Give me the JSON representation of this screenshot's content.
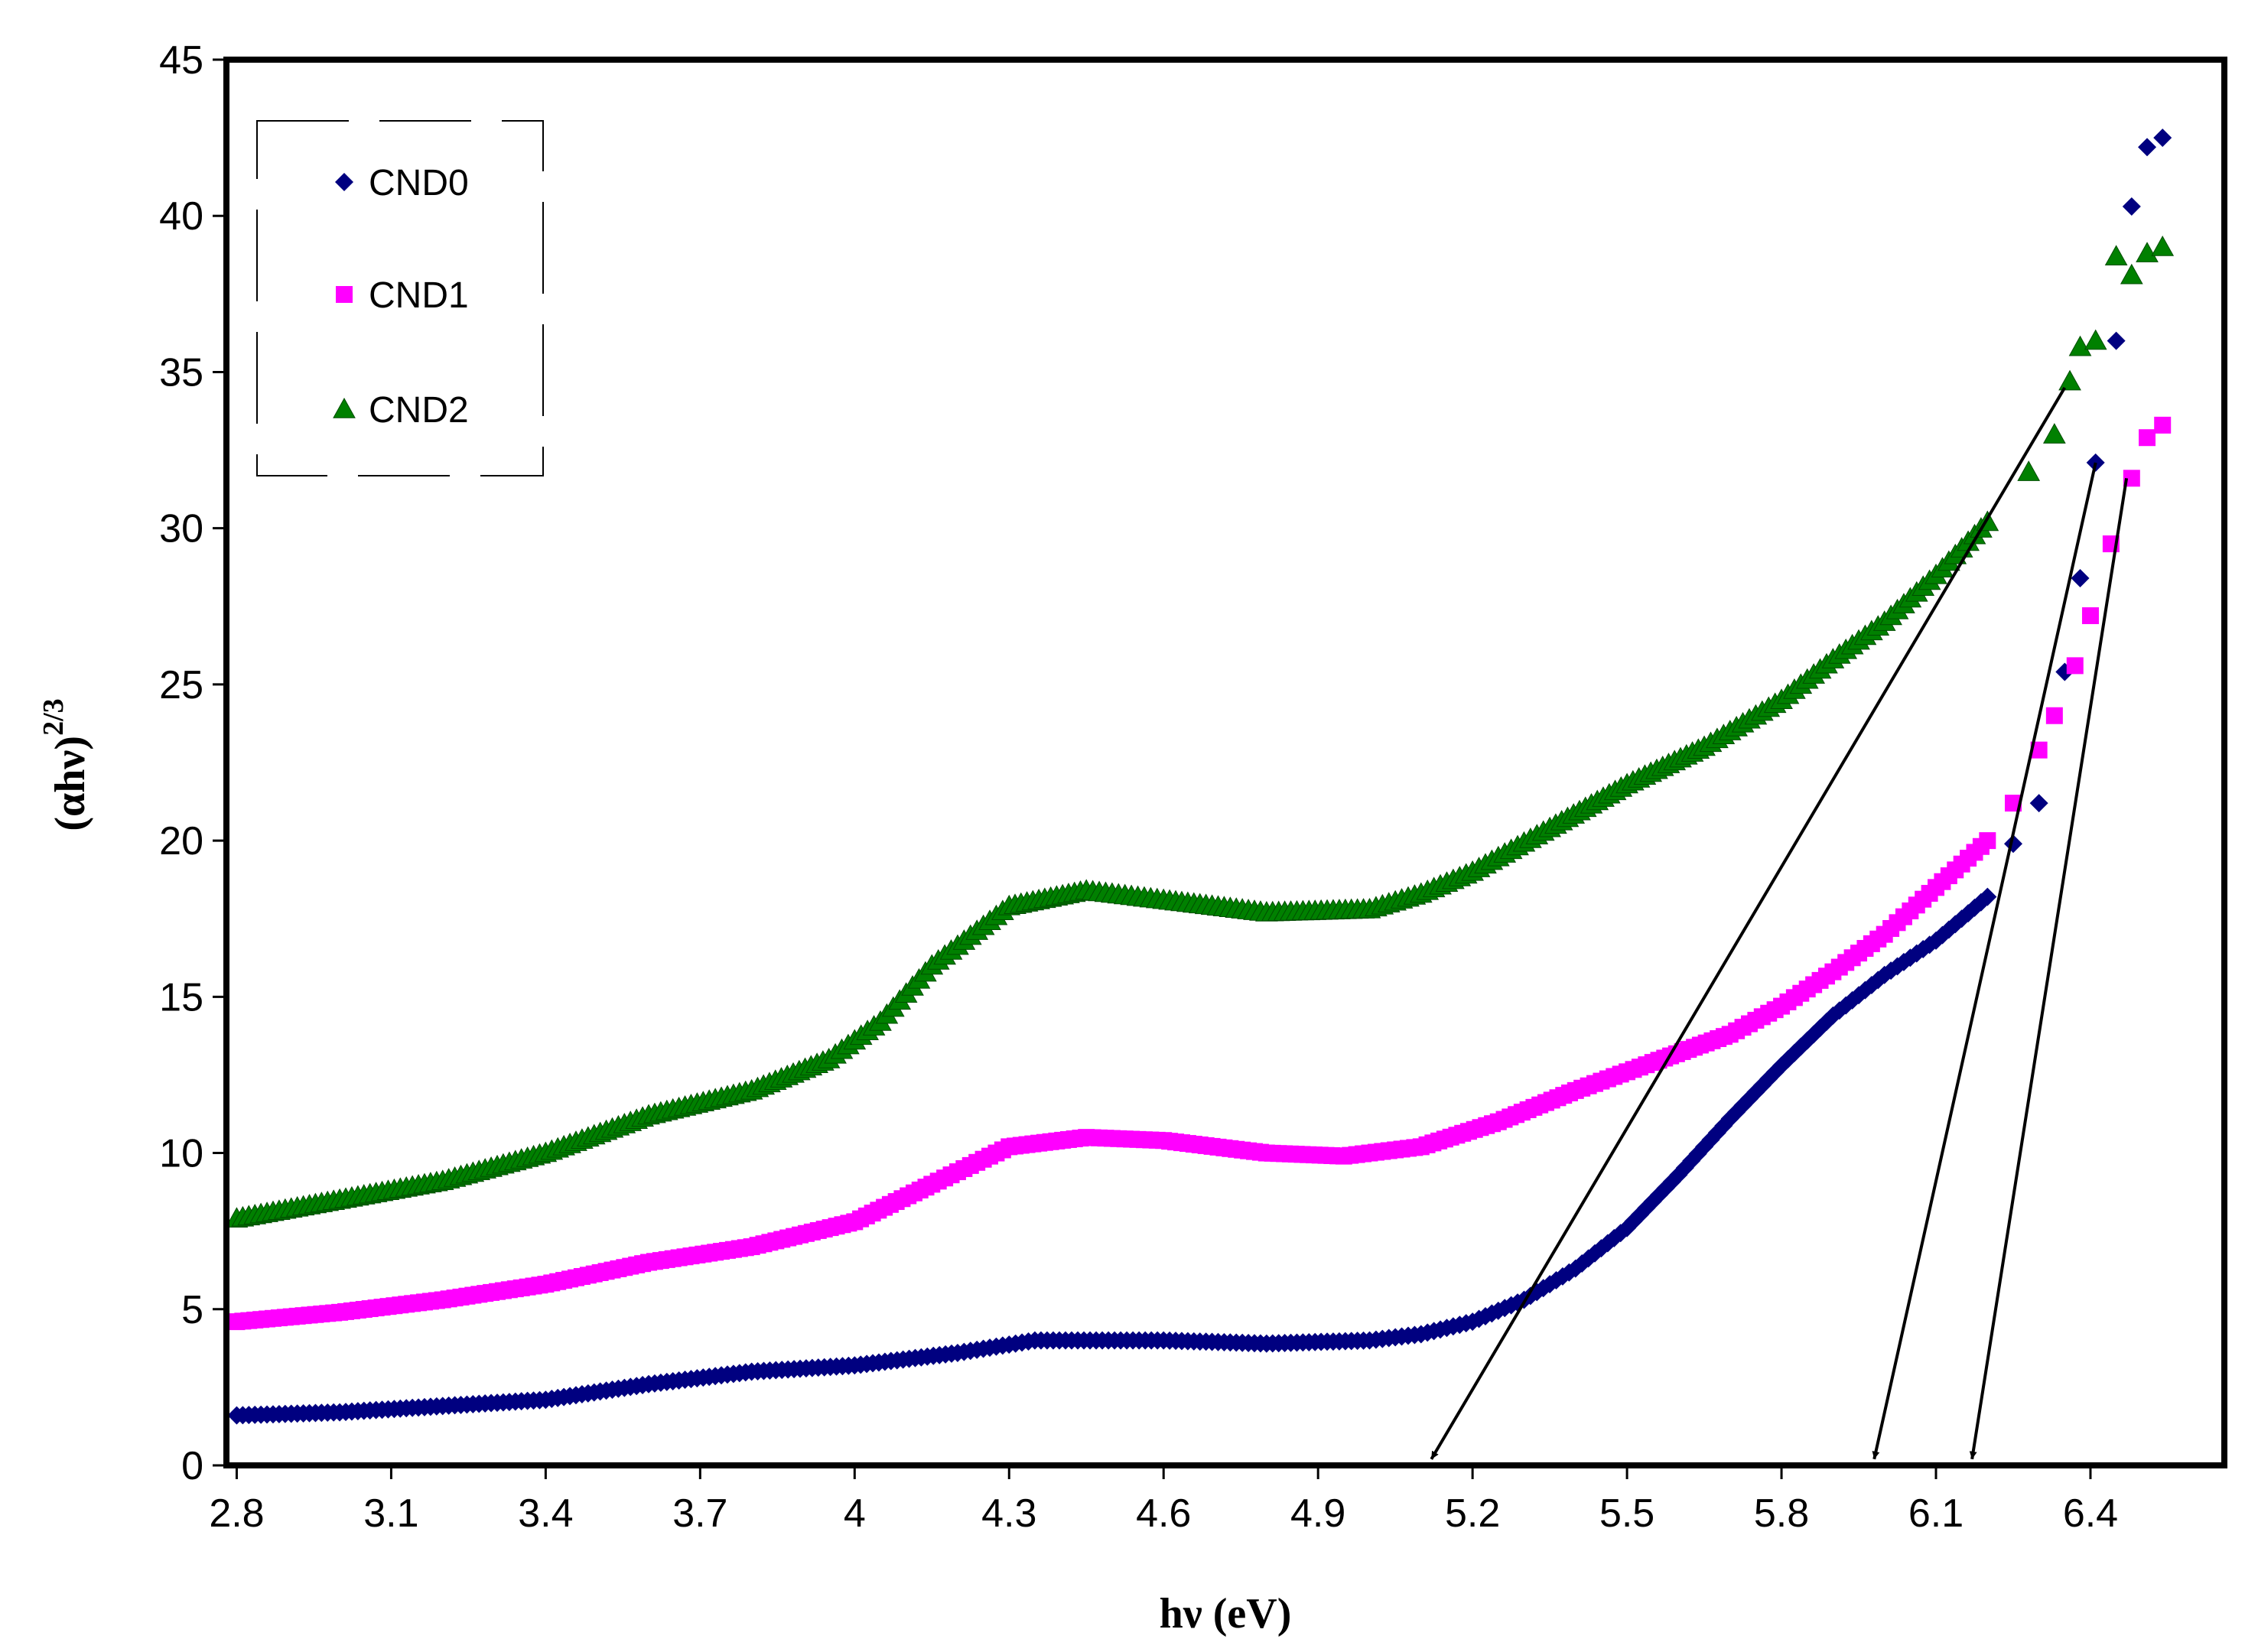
{
  "chart_data": {
    "type": "scatter",
    "title": "",
    "xlabel": "hν (eV)",
    "ylabel_base": "(αhν)",
    "ylabel_exp": "2/3",
    "xlim": [
      2.78,
      6.66
    ],
    "ylim": [
      0,
      45
    ],
    "xticks": [
      2.8,
      3.1,
      3.4,
      3.7,
      4.0,
      4.3,
      4.6,
      4.9,
      5.2,
      5.5,
      5.8,
      6.1,
      6.4
    ],
    "xtick_labels": [
      "2.8",
      "3.1",
      "3.4",
      "3.7",
      "4",
      "4.3",
      "4.6",
      "4.9",
      "5.2",
      "5.5",
      "5.8",
      "6.1",
      "6.4"
    ],
    "yticks": [
      0,
      5,
      10,
      15,
      20,
      25,
      30,
      35,
      40,
      45
    ],
    "ytick_labels": [
      "0",
      "5",
      "10",
      "15",
      "20",
      "25",
      "30",
      "35",
      "40",
      "45"
    ],
    "legend_position": "top-left",
    "series": [
      {
        "name": "CND0",
        "color": "#000080",
        "marker": "diamond",
        "points": [
          [
            2.8,
            1.6
          ],
          [
            3.0,
            1.7
          ],
          [
            3.2,
            1.9
          ],
          [
            3.4,
            2.1
          ],
          [
            3.6,
            2.6
          ],
          [
            3.8,
            3.0
          ],
          [
            4.0,
            3.2
          ],
          [
            4.2,
            3.6
          ],
          [
            4.35,
            4.0
          ],
          [
            4.6,
            4.0
          ],
          [
            4.8,
            3.9
          ],
          [
            5.0,
            4.0
          ],
          [
            5.1,
            4.2
          ],
          [
            5.2,
            4.6
          ],
          [
            5.3,
            5.3
          ],
          [
            5.4,
            6.3
          ],
          [
            5.5,
            7.6
          ],
          [
            5.6,
            9.3
          ],
          [
            5.7,
            11.1
          ],
          [
            5.8,
            12.8
          ],
          [
            5.9,
            14.4
          ],
          [
            6.0,
            15.7
          ],
          [
            6.1,
            16.8
          ],
          [
            6.2,
            18.2
          ],
          [
            6.25,
            19.9
          ],
          [
            6.3,
            21.2
          ],
          [
            6.35,
            25.4
          ],
          [
            6.38,
            28.4
          ],
          [
            6.41,
            32.1
          ],
          [
            6.45,
            36.0
          ],
          [
            6.48,
            40.3
          ],
          [
            6.51,
            42.2
          ],
          [
            6.54,
            42.5
          ]
        ]
      },
      {
        "name": "CND1",
        "color": "#FF00FF",
        "marker": "square",
        "points": [
          [
            2.8,
            4.6
          ],
          [
            3.0,
            4.9
          ],
          [
            3.2,
            5.3
          ],
          [
            3.4,
            5.8
          ],
          [
            3.6,
            6.5
          ],
          [
            3.8,
            7.0
          ],
          [
            4.0,
            7.8
          ],
          [
            4.15,
            9.0
          ],
          [
            4.3,
            10.2
          ],
          [
            4.45,
            10.5
          ],
          [
            4.6,
            10.4
          ],
          [
            4.8,
            10.0
          ],
          [
            4.95,
            9.9
          ],
          [
            5.1,
            10.2
          ],
          [
            5.25,
            11.0
          ],
          [
            5.4,
            12.0
          ],
          [
            5.55,
            12.9
          ],
          [
            5.7,
            13.8
          ],
          [
            5.8,
            14.7
          ],
          [
            5.9,
            15.8
          ],
          [
            6.0,
            17.0
          ],
          [
            6.1,
            18.5
          ],
          [
            6.2,
            20.0
          ],
          [
            6.25,
            21.2
          ],
          [
            6.3,
            22.9
          ],
          [
            6.33,
            24.0
          ],
          [
            6.37,
            25.6
          ],
          [
            6.4,
            27.2
          ],
          [
            6.44,
            29.5
          ],
          [
            6.48,
            31.6
          ],
          [
            6.51,
            32.9
          ],
          [
            6.54,
            33.3
          ]
        ]
      },
      {
        "name": "CND2",
        "color": "#008000",
        "marker": "triangle",
        "points": [
          [
            2.8,
            7.9
          ],
          [
            3.0,
            8.5
          ],
          [
            3.2,
            9.1
          ],
          [
            3.4,
            10.0
          ],
          [
            3.6,
            11.2
          ],
          [
            3.8,
            12.0
          ],
          [
            3.95,
            13.0
          ],
          [
            4.05,
            14.2
          ],
          [
            4.15,
            16.0
          ],
          [
            4.3,
            17.9
          ],
          [
            4.45,
            18.4
          ],
          [
            4.6,
            18.1
          ],
          [
            4.8,
            17.7
          ],
          [
            5.0,
            17.8
          ],
          [
            5.1,
            18.3
          ],
          [
            5.2,
            19.0
          ],
          [
            5.35,
            20.4
          ],
          [
            5.5,
            21.8
          ],
          [
            5.65,
            23.0
          ],
          [
            5.8,
            24.5
          ],
          [
            5.9,
            25.8
          ],
          [
            6.0,
            27.0
          ],
          [
            6.1,
            28.5
          ],
          [
            6.2,
            30.2
          ],
          [
            6.28,
            31.8
          ],
          [
            6.33,
            33.0
          ],
          [
            6.36,
            34.7
          ],
          [
            6.38,
            35.8
          ],
          [
            6.41,
            36.0
          ],
          [
            6.45,
            38.7
          ],
          [
            6.48,
            38.1
          ],
          [
            6.51,
            38.8
          ],
          [
            6.54,
            39.0
          ]
        ]
      }
    ],
    "fit_lines": [
      {
        "name": "CND0-fit",
        "from": [
          6.41,
          32.1
        ],
        "to": [
          5.98,
          0.2
        ]
      },
      {
        "name": "CND1-fit",
        "from": [
          6.47,
          31.6
        ],
        "to": [
          6.17,
          0.2
        ]
      },
      {
        "name": "CND2-fit",
        "from": [
          6.35,
          34.5
        ],
        "to": [
          5.12,
          0.2
        ]
      }
    ]
  }
}
